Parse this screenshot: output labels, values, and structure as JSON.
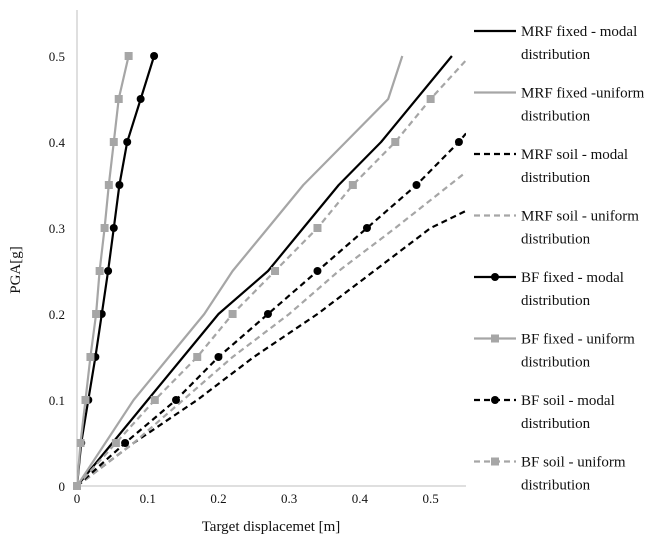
{
  "chart_data": {
    "type": "line",
    "title": "",
    "xlabel": "Target displacemet [m]",
    "ylabel": "PGA[g]",
    "xlim": [
      0,
      0.55
    ],
    "ylim": [
      0,
      0.55
    ],
    "xticks": [
      "0",
      "0.1",
      "0.2",
      "0.3",
      "0.4",
      "0.5"
    ],
    "yticks": [
      "0",
      "0.1",
      "0.2",
      "0.3",
      "0.4",
      "0.5"
    ],
    "grid": false,
    "legend_position": "right",
    "series": [
      {
        "name": "MRF fixed - modal distribution",
        "name_lines": [
          "MRF fixed - modal",
          "distribution"
        ],
        "color": "#000000",
        "dash": "solid",
        "marker": "none",
        "x": [
          0,
          0.05,
          0.1,
          0.15,
          0.2,
          0.27,
          0.32,
          0.37,
          0.43,
          0.53
        ],
        "y": [
          0,
          0.05,
          0.1,
          0.15,
          0.2,
          0.25,
          0.3,
          0.35,
          0.4,
          0.5
        ]
      },
      {
        "name": "MRF fixed -uniform distribution",
        "name_lines": [
          "MRF fixed -uniform",
          "distribution"
        ],
        "color": "#a6a6a6",
        "dash": "solid",
        "marker": "none",
        "x": [
          0,
          0.04,
          0.08,
          0.13,
          0.18,
          0.22,
          0.27,
          0.32,
          0.38,
          0.44,
          0.46
        ],
        "y": [
          0,
          0.05,
          0.1,
          0.15,
          0.2,
          0.25,
          0.3,
          0.35,
          0.4,
          0.45,
          0.5
        ]
      },
      {
        "name": "MRF soil - modal distribution",
        "name_lines": [
          "MRF soil - modal",
          "distribution"
        ],
        "color": "#000000",
        "dash": "dashed",
        "marker": "none",
        "x": [
          0,
          0.08,
          0.17,
          0.25,
          0.34,
          0.42,
          0.5,
          0.55
        ],
        "y": [
          0,
          0.05,
          0.1,
          0.15,
          0.2,
          0.25,
          0.3,
          0.32
        ]
      },
      {
        "name": "MRF soil - uniform distribution",
        "name_lines": [
          "MRF soil - uniform",
          "distribution"
        ],
        "color": "#a6a6a6",
        "dash": "dashed",
        "marker": "none",
        "x": [
          0,
          0.08,
          0.15,
          0.22,
          0.3,
          0.37,
          0.45,
          0.55
        ],
        "y": [
          0,
          0.05,
          0.1,
          0.15,
          0.2,
          0.25,
          0.3,
          0.365
        ]
      },
      {
        "name": "BF fixed - modal distribution",
        "name_lines": [
          "BF fixed - modal",
          "distribution"
        ],
        "color": "#000000",
        "dash": "solid",
        "marker": "circle",
        "x": [
          0,
          0.006,
          0.016,
          0.026,
          0.035,
          0.044,
          0.052,
          0.06,
          0.071,
          0.09,
          0.109
        ],
        "y": [
          0,
          0.05,
          0.1,
          0.15,
          0.2,
          0.25,
          0.3,
          0.35,
          0.4,
          0.45,
          0.5
        ]
      },
      {
        "name": "BF fixed - uniform distribution",
        "name_lines": [
          "BF fixed - uniform",
          "distribution"
        ],
        "color": "#a6a6a6",
        "dash": "solid",
        "marker": "square",
        "x": [
          0,
          0.005,
          0.012,
          0.019,
          0.027,
          0.032,
          0.039,
          0.045,
          0.052,
          0.059,
          0.073
        ],
        "y": [
          0,
          0.05,
          0.1,
          0.15,
          0.2,
          0.25,
          0.3,
          0.35,
          0.4,
          0.45,
          0.5
        ]
      },
      {
        "name": "BF soil - modal distribution",
        "name_lines": [
          "BF soil - modal",
          "distribution"
        ],
        "color": "#000000",
        "dash": "dashed",
        "marker": "circle",
        "x": [
          0,
          0.068,
          0.14,
          0.2,
          0.27,
          0.34,
          0.41,
          0.48,
          0.54,
          0.55
        ],
        "y": [
          0,
          0.05,
          0.1,
          0.15,
          0.2,
          0.25,
          0.3,
          0.35,
          0.4,
          0.41
        ]
      },
      {
        "name": "BF soil - uniform distribution",
        "name_lines": [
          "BF soil - uniform",
          "distribution"
        ],
        "color": "#a6a6a6",
        "dash": "dashed",
        "marker": "square",
        "x": [
          0,
          0.055,
          0.11,
          0.17,
          0.22,
          0.28,
          0.34,
          0.39,
          0.45,
          0.5,
          0.55
        ],
        "y": [
          0,
          0.05,
          0.1,
          0.15,
          0.2,
          0.25,
          0.3,
          0.35,
          0.4,
          0.45,
          0.495
        ]
      }
    ]
  }
}
